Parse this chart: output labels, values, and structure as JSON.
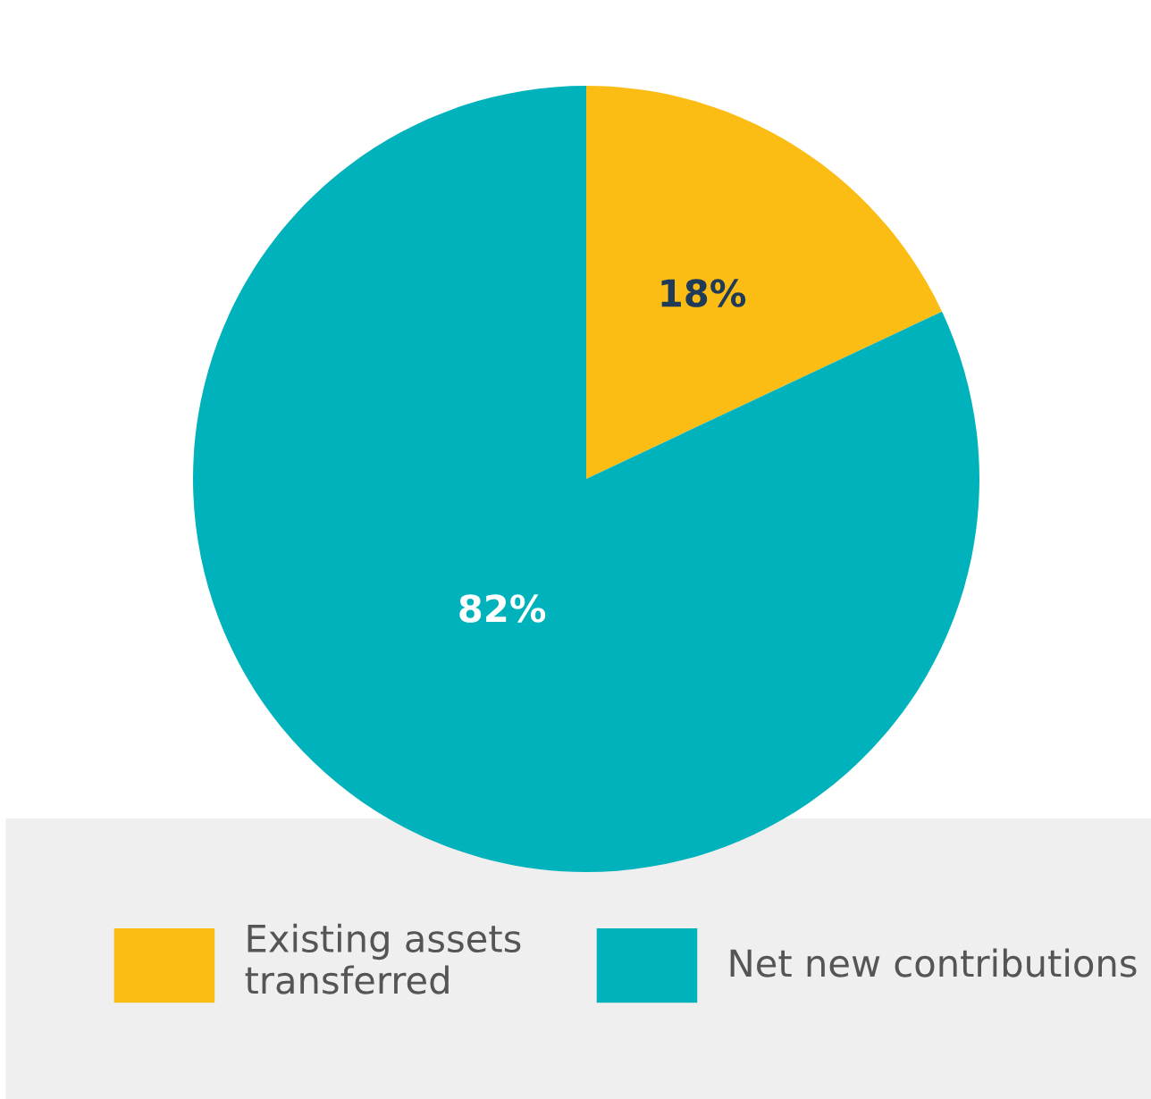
{
  "chart_data": {
    "type": "pie",
    "categories": [
      "Existing assets\ntransferred",
      "Net new contributions"
    ],
    "values": [
      18,
      82
    ],
    "colors": [
      "#fbbd14",
      "#00b2bb"
    ],
    "value_labels": [
      "18%",
      "82%"
    ],
    "legend": "bottom"
  }
}
